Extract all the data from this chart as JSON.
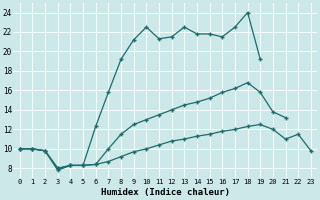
{
  "xlabel": "Humidex (Indice chaleur)",
  "bg_color": "#cce8e8",
  "line_color": "#1e6b6b",
  "grid_color": "#ffffff",
  "xlim": [
    -0.5,
    23.5
  ],
  "ylim": [
    7,
    25
  ],
  "xticks": [
    0,
    1,
    2,
    3,
    4,
    5,
    6,
    7,
    8,
    9,
    10,
    11,
    12,
    13,
    14,
    15,
    16,
    17,
    18,
    19,
    20,
    21,
    22,
    23
  ],
  "yticks": [
    8,
    10,
    12,
    14,
    16,
    18,
    20,
    22,
    24
  ],
  "line1_x": [
    0,
    1,
    2,
    3,
    4,
    5,
    6,
    7,
    8,
    9,
    10,
    11,
    12,
    13,
    14,
    15,
    16,
    17,
    18,
    19
  ],
  "line1_y": [
    10.0,
    10.0,
    9.8,
    7.8,
    8.3,
    8.3,
    12.3,
    15.8,
    19.2,
    21.2,
    22.5,
    21.3,
    21.5,
    22.5,
    21.8,
    21.8,
    21.5,
    22.5,
    24.0,
    19.2
  ],
  "line2_x": [
    0,
    1,
    2,
    3,
    4,
    5,
    6,
    7,
    8,
    9,
    10,
    11,
    12,
    13,
    14,
    15,
    16,
    17,
    18,
    19,
    20,
    21
  ],
  "line2_y": [
    10.0,
    10.0,
    9.8,
    8.0,
    8.3,
    8.3,
    8.4,
    10.0,
    11.5,
    12.5,
    13.0,
    13.5,
    14.0,
    14.5,
    14.8,
    15.2,
    15.8,
    16.2,
    16.8,
    15.8,
    13.8,
    13.2
  ],
  "line3_x": [
    0,
    1,
    2,
    3,
    4,
    5,
    6,
    7,
    8,
    9,
    10,
    11,
    12,
    13,
    14,
    15,
    16,
    17,
    18,
    19,
    20,
    21,
    22,
    23
  ],
  "line3_y": [
    10.0,
    10.0,
    9.8,
    8.0,
    8.3,
    8.3,
    8.4,
    8.7,
    9.2,
    9.7,
    10.0,
    10.4,
    10.8,
    11.0,
    11.3,
    11.5,
    11.8,
    12.0,
    12.3,
    12.5,
    12.0,
    11.0,
    11.5,
    9.8
  ]
}
